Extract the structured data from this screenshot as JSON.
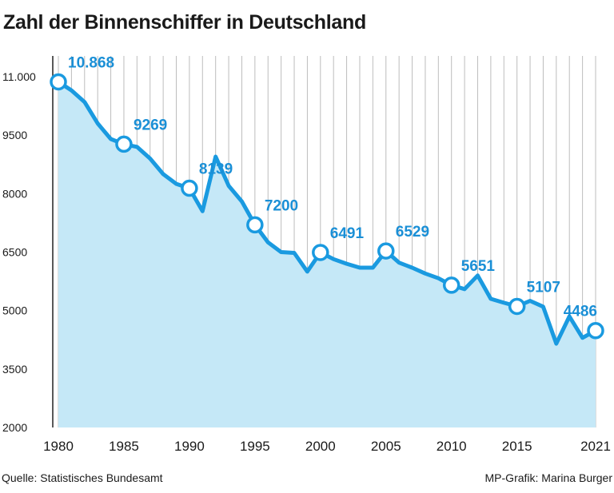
{
  "chart_data": {
    "type": "area",
    "title": "Zahl der Binnenschiffer in Deutschland",
    "xlabel": "",
    "ylabel": "",
    "source": "Quelle: Statistisches Bundesamt",
    "credit": "MP-Grafik: Marina Burger",
    "x": [
      1980,
      1981,
      1982,
      1983,
      1984,
      1985,
      1986,
      1987,
      1988,
      1989,
      1990,
      1991,
      1992,
      1993,
      1994,
      1995,
      1996,
      1997,
      1998,
      1999,
      2000,
      2001,
      2002,
      2003,
      2004,
      2005,
      2006,
      2007,
      2008,
      2009,
      2010,
      2011,
      2012,
      2013,
      2014,
      2015,
      2016,
      2017,
      2018,
      2019,
      2020,
      2021
    ],
    "values": [
      10868,
      10650,
      10350,
      9800,
      9400,
      9269,
      9200,
      8900,
      8500,
      8250,
      8139,
      7550,
      8950,
      8200,
      7800,
      7200,
      6750,
      6500,
      6480,
      6000,
      6491,
      6320,
      6200,
      6100,
      6100,
      6529,
      6230,
      6100,
      5950,
      5830,
      5651,
      5550,
      5900,
      5300,
      5200,
      5107,
      5250,
      5100,
      4150,
      4850,
      4300,
      4486
    ],
    "labeled_points": [
      {
        "x": 1980,
        "label": "10.868"
      },
      {
        "x": 1985,
        "label": "9269"
      },
      {
        "x": 1990,
        "label": "8139"
      },
      {
        "x": 1995,
        "label": "7200"
      },
      {
        "x": 2000,
        "label": "6491"
      },
      {
        "x": 2005,
        "label": "6529"
      },
      {
        "x": 2010,
        "label": "5651"
      },
      {
        "x": 2015,
        "label": "5107"
      },
      {
        "x": 2021,
        "label": "4486"
      }
    ],
    "x_ticks": [
      "1980",
      "1985",
      "1990",
      "1995",
      "2000",
      "2005",
      "2010",
      "2015",
      "2021"
    ],
    "x_tick_values": [
      1980,
      1985,
      1990,
      1995,
      2000,
      2005,
      2010,
      2015,
      2021
    ],
    "y_ticks": [
      "2000",
      "3500",
      "5000",
      "6500",
      "8000",
      "9500",
      "11.000"
    ],
    "y_tick_values": [
      2000,
      3500,
      5000,
      6500,
      8000,
      9500,
      11000
    ],
    "ylim": [
      2000,
      11000
    ],
    "xlim": [
      1980,
      2021
    ],
    "grid": true,
    "colors": {
      "line": "#1a9ae0",
      "fill": "#c5e8f7",
      "grid": "#bdbdbd",
      "label": "#1a8fd6",
      "axis": "#222222"
    }
  }
}
